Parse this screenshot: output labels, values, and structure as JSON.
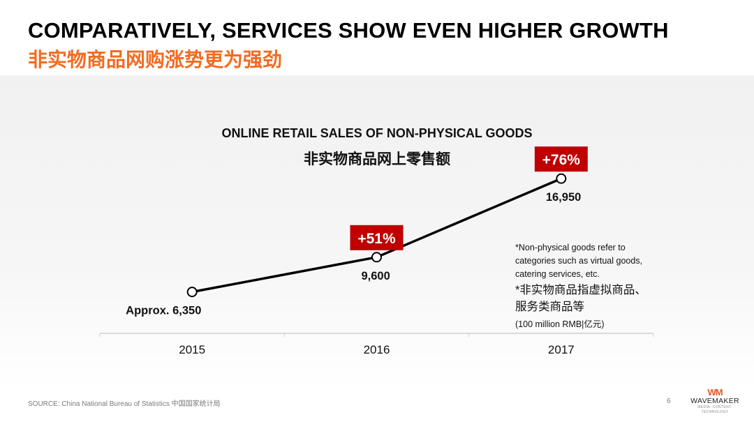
{
  "slide": {
    "title_en": "COMPARATIVELY, SERVICES SHOW EVEN HIGHER GROWTH",
    "title_cn": "非实物商品网购涨势更为强劲",
    "source": "SOURCE: China National Bureau of Statistics 中国国家统计局",
    "page_number": "6",
    "logo": {
      "mark": "WM",
      "name": "WAVEMAKER",
      "tagline": "MEDIA. CONTENT. TECHNOLOGY"
    },
    "note_en": "*Non-physical goods refer to categories such as virtual goods, catering services, etc.",
    "note_cn": "*非实物商品指虚拟商品、服务类商品等",
    "unit_note": "(100 million RMB|亿元)"
  },
  "chart_data": {
    "type": "line",
    "title": "ONLINE RETAIL SALES OF NON-PHYSICAL GOODS",
    "subtitle": "非实物商品网上零售额",
    "categories": [
      "2015",
      "2016",
      "2017"
    ],
    "values": [
      6350,
      9600,
      16950
    ],
    "data_labels": [
      "Approx. 6,350",
      "9,600",
      "16,950"
    ],
    "growth_labels": [
      null,
      "+51%",
      "+76%"
    ],
    "ylim": [
      3000,
      18000
    ],
    "xlabel": "",
    "ylabel": "",
    "grid": false,
    "colors": {
      "line": "#000000",
      "marker_fill": "#ffffff",
      "badge": "#c00000",
      "badge_text": "#ffffff",
      "axis": "#cfcfcf"
    }
  }
}
